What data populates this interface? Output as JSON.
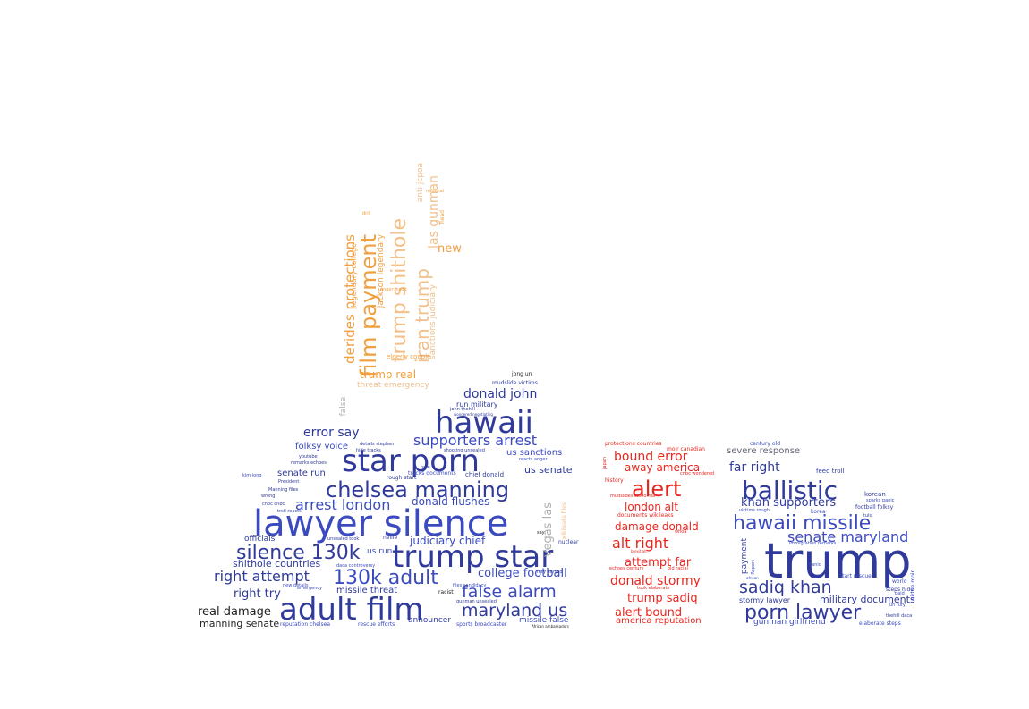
{
  "colors": {
    "navy": "#2f3a9a",
    "blue": "#3b4bbf",
    "red": "#e8261e",
    "orange": "#f0a040",
    "peach": "#f2c08a",
    "gray": "#b0b0b0",
    "black": "#222222"
  },
  "clouds": {
    "orange": [
      "film payment",
      "trump shithole",
      "iran trump",
      "derides protections",
      "legendary college",
      "jackson legendary",
      "las gunman",
      "new",
      "trump real",
      "threat emergency",
      "anti jcpoa",
      "elderly couple",
      "head",
      "national",
      "drill",
      "anger insult",
      "sanctions judiciary",
      "false"
    ],
    "blue": [
      "hawaii",
      "star porn",
      "lawyer silence",
      "chelsea manning",
      "trump star",
      "adult film",
      "silence 130k",
      "130k adult",
      "false alarm",
      "maryland us",
      "donald john",
      "supporters arrest",
      "error say",
      "arrest london",
      "donald flushes",
      "right attempt",
      "college football",
      "judiciary chief",
      "shithole countries",
      "right try",
      "real damage",
      "manning senate",
      "us senate",
      "us sanctions",
      "senate run",
      "folksy voice",
      "missile threat",
      "vegas las",
      "run military",
      "mudslide victims",
      "jong un",
      "missile false",
      "officials",
      "announcer",
      "sports broadcaster",
      "rescue efforts",
      "unsealed took",
      "reputation chelsea",
      "daca controversy",
      "tracks documents",
      "rough start",
      "nuclear",
      "fury donald",
      "us run",
      "nellie",
      "files candidacy",
      "gunman unsealed",
      "chief donald",
      "wikileaks files",
      "youtube",
      "remarks echoes",
      "President",
      "Manning files",
      "cnbc cnbc",
      "wrong",
      "emergency",
      "new details",
      "troll reacts",
      "racist",
      "kim jong",
      "hide tracks",
      "details stephen",
      "shooting unsealed",
      "hole",
      "john thehill",
      "wondered negotiating",
      "reacts anger",
      "say",
      "African ambassadors"
    ],
    "red": [
      "alert",
      "bound error",
      "away america",
      "alt right",
      "damage donald",
      "london alt",
      "attempt far",
      "donald stormy",
      "trump sadiq",
      "alert bound",
      "america reputation",
      "protections countries",
      "moir canadian",
      "documents wikileaks",
      "mudslides california",
      "echoes century",
      "old racial",
      "took elaborate",
      "cnbc wondered",
      "brexit alt",
      "japan",
      "history",
      "whoa"
    ],
    "right": [
      "trump",
      "ballistic",
      "hawaii missile",
      "porn lawyer",
      "sadiq khan",
      "senate maryland",
      "khan supporters",
      "far right",
      "severe response",
      "military documents",
      "stormy lawyer",
      "gunman girlfriend",
      "century old",
      "feed troll",
      "korean",
      "sparks panic",
      "football folksy",
      "world",
      "virtue moir",
      "steps hide",
      "elaborate steps",
      "thehill daca",
      "un fury",
      "start rescue",
      "panic",
      "african",
      "payment",
      "Report",
      "immigration remarks",
      "victims rough",
      "korea",
      "tulsi",
      "paid"
    ]
  }
}
